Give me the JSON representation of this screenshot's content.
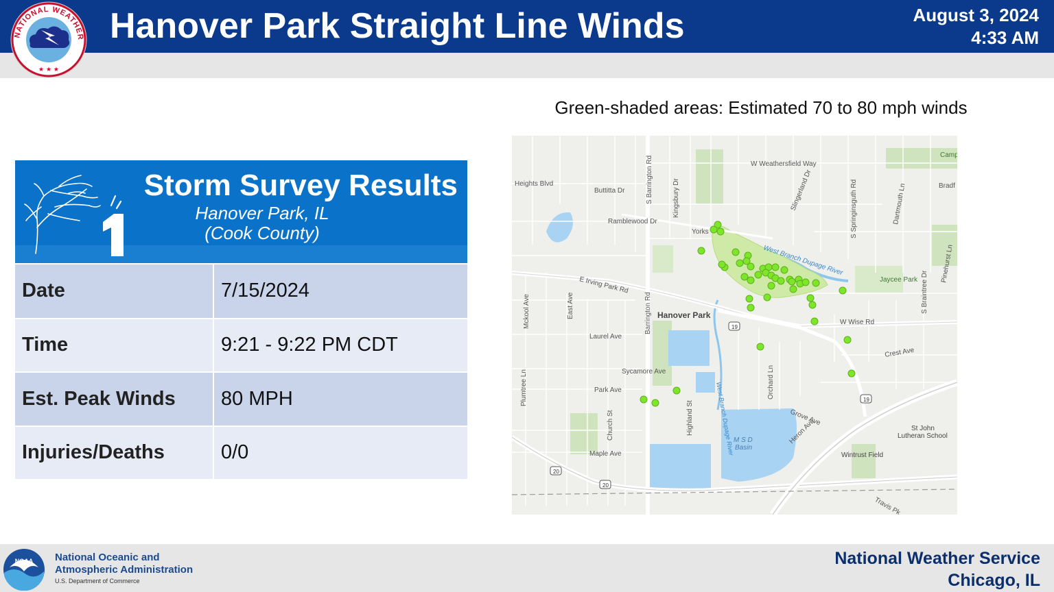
{
  "header": {
    "title": "Hanover Park Straight Line Winds",
    "date": "August 3, 2024",
    "time": "4:33 AM",
    "logo_text": "NATIONAL WEATHER SERVICE"
  },
  "survey": {
    "title": "Storm Survey Results",
    "location": "Hanover Park, IL",
    "county": "(Cook County)",
    "rating_glyph": "1",
    "rows": [
      {
        "label": "Date",
        "value": "7/15/2024"
      },
      {
        "label": "Time",
        "value": "9:21 - 9:22 PM CDT"
      },
      {
        "label": "Est. Peak Winds",
        "value": "80 MPH"
      },
      {
        "label": "Injuries/Deaths",
        "value": "0/0"
      }
    ]
  },
  "map": {
    "caption": "Green-shaded areas: Estimated 70 to 80 mph winds",
    "labels": {
      "weathersfield": "W Weathersfield Way",
      "heights": "Heights Blvd",
      "buttitta": "Buttitta Dr",
      "barrington_n": "S Barrington Rd",
      "kingsbury": "Kingsbury Dr",
      "ramblewood": "Ramblewood Dr",
      "yorkshire": "Yorks",
      "slingerland": "Slingerland Dr",
      "springinsguth": "S Springinsguth Rd",
      "dartmouth": "Dartmouth Ln",
      "bradford": "Bradf",
      "campanula": "Campar",
      "west_branch": "West Branch Dupage River",
      "irving": "E Irving Park Rd",
      "hanover_park": "Hanover Park",
      "wise": "W Wise Rd",
      "jaycee": "Jaycee Park",
      "braintree": "S Braintree Dr",
      "pinehurst": "Pinehurst Ln",
      "mckool": "Mckool Ave",
      "east": "East Ave",
      "laurel": "Laurel Ave",
      "barrington_s": "Barrington Rd",
      "rt19": "19",
      "crest": "Crest Ave",
      "sycamore": "Sycamore Ave",
      "orchard": "Orchard Ln",
      "plumtree": "Plumtree Ln",
      "park": "Park Ave",
      "highland": "Highland St",
      "grove": "Grove Ave",
      "heron": "Heron Ave",
      "church": "Church St",
      "msd": "M S D",
      "basin": "Basin",
      "stjohn1": "St John",
      "stjohn2": "Lutheran School",
      "maple": "Maple Ave",
      "wintrust": "Wintrust Field",
      "rt20a": "20",
      "rt20b": "20",
      "travis": "Travis Pk"
    },
    "report_count": 52
  },
  "footer": {
    "noaa_line1": "National Oceanic and",
    "noaa_line2": "Atmospheric Administration",
    "noaa_dept": "U.S. Department of Commerce",
    "noaa_logo_text": "NOAA",
    "nws_line1": "National Weather Service",
    "nws_line2": "Chicago, IL"
  },
  "colors": {
    "header_blue": "#0b3a8c",
    "card_blue": "#0a72c8",
    "report_dot": "#7de52a",
    "damage_area": "#cfeaa6"
  }
}
